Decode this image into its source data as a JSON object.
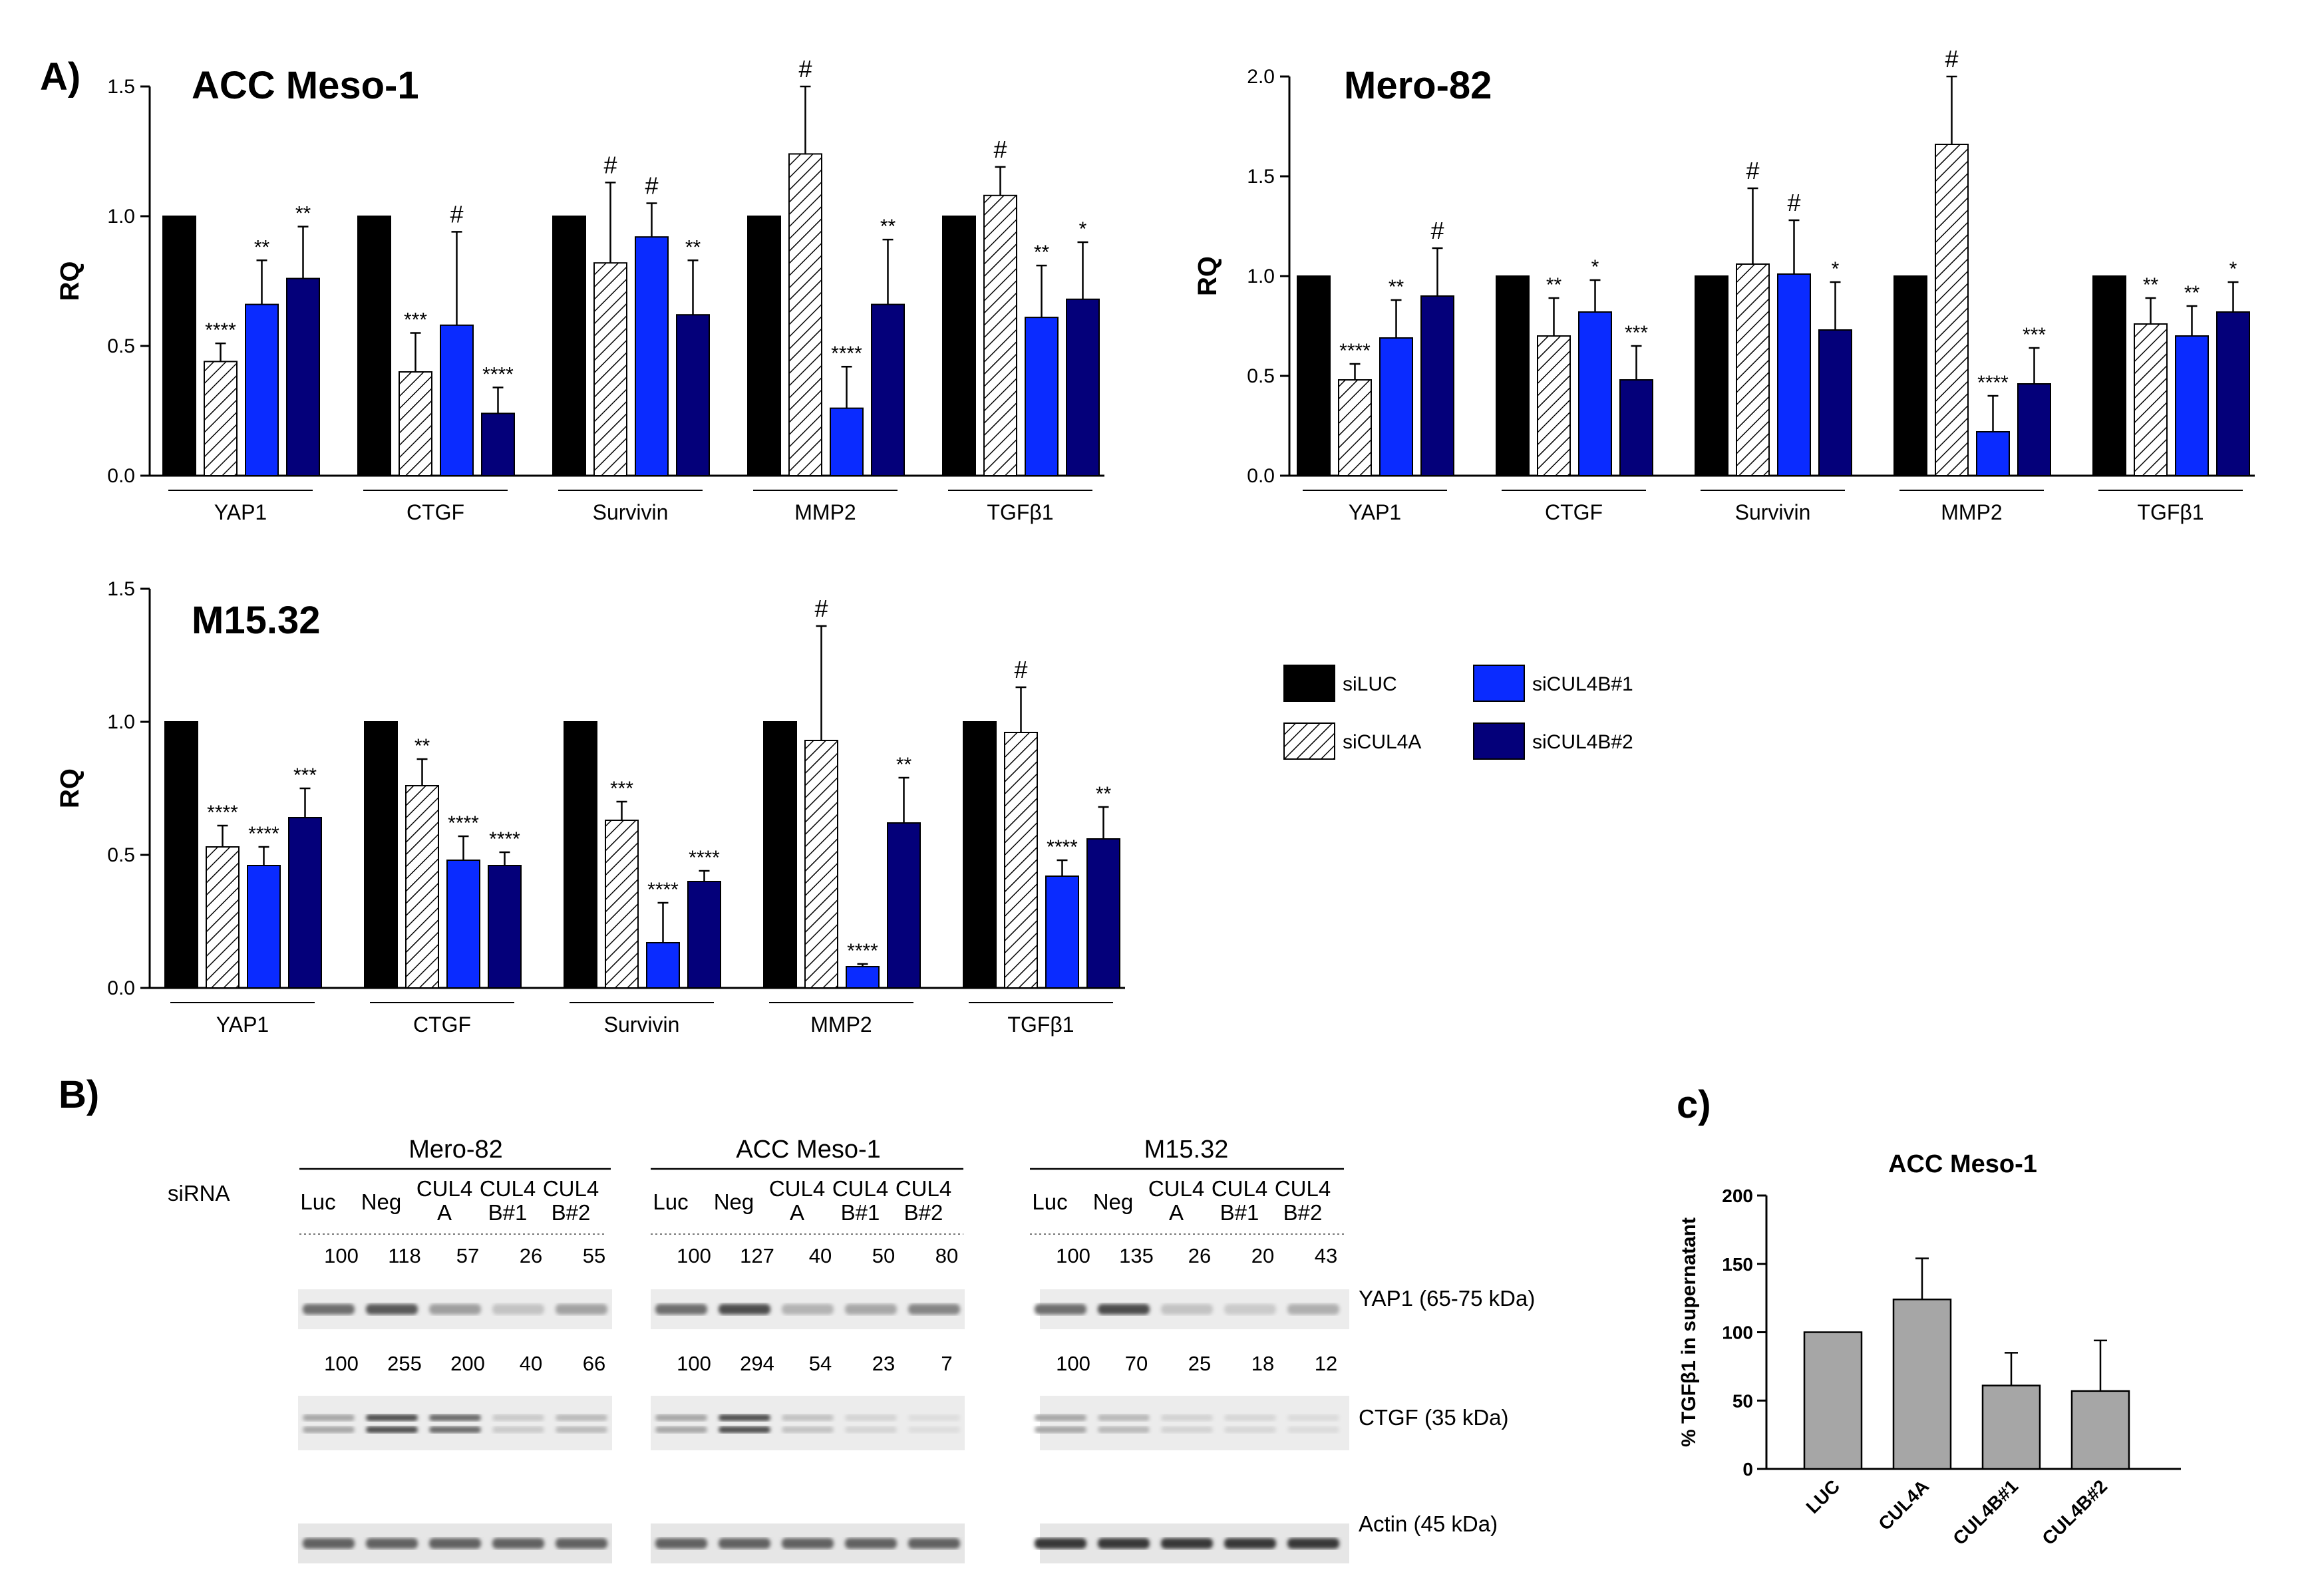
{
  "figure": {
    "panel_labels": {
      "A": "A)",
      "B": "B)",
      "C": "c)"
    }
  },
  "legend": {
    "items": [
      {
        "name": "siLUC",
        "color": "#000000",
        "pattern": "solid"
      },
      {
        "name": "siCUL4A",
        "color": "#ffffff",
        "pattern": "hatch"
      },
      {
        "name": "siCUL4B#1",
        "color": "#0a2bff",
        "pattern": "solid"
      },
      {
        "name": "siCUL4B#2",
        "color": "#04007a",
        "pattern": "solid"
      }
    ]
  },
  "chart_data": [
    {
      "type": "bar",
      "title": "ACC Meso-1",
      "ylabel": "RQ",
      "ylim": [
        0,
        1.5
      ],
      "yticks": [
        "0.0",
        "0.5",
        "1.0",
        "1.5"
      ],
      "categories": [
        "YAP1",
        "CTGF",
        "Survivin",
        "MMP2",
        "TGFβ1"
      ],
      "series": [
        {
          "name": "siLUC",
          "values": [
            1.0,
            1.0,
            1.0,
            1.0,
            1.0
          ],
          "errors": [
            0,
            0,
            0,
            0,
            0
          ],
          "labels": [
            "",
            "",
            "",
            "",
            ""
          ]
        },
        {
          "name": "siCUL4A",
          "values": [
            0.44,
            0.4,
            0.82,
            1.24,
            1.08
          ],
          "errors": [
            0.07,
            0.15,
            0.31,
            0.26,
            0.11
          ],
          "labels": [
            "****",
            "***",
            "#",
            "#",
            "#"
          ]
        },
        {
          "name": "siCUL4B#1",
          "values": [
            0.66,
            0.58,
            0.92,
            0.26,
            0.61
          ],
          "errors": [
            0.17,
            0.36,
            0.13,
            0.16,
            0.2
          ],
          "labels": [
            "**",
            "#",
            "#",
            "****",
            "**"
          ]
        },
        {
          "name": "siCUL4B#2",
          "values": [
            0.76,
            0.24,
            0.62,
            0.66,
            0.68
          ],
          "errors": [
            0.2,
            0.1,
            0.21,
            0.25,
            0.22
          ],
          "labels": [
            "**",
            "****",
            "**",
            "**",
            "*"
          ]
        }
      ]
    },
    {
      "type": "bar",
      "title": "Mero-82",
      "ylabel": "RQ",
      "ylim": [
        0,
        2.0
      ],
      "yticks": [
        "0.0",
        "0.5",
        "1.0",
        "1.5",
        "2.0"
      ],
      "categories": [
        "YAP1",
        "CTGF",
        "Survivin",
        "MMP2",
        "TGFβ1"
      ],
      "series": [
        {
          "name": "siLUC",
          "values": [
            1.0,
            1.0,
            1.0,
            1.0,
            1.0
          ],
          "errors": [
            0,
            0,
            0,
            0,
            0
          ],
          "labels": [
            "",
            "",
            "",
            "",
            ""
          ]
        },
        {
          "name": "siCUL4A",
          "values": [
            0.48,
            0.7,
            1.06,
            1.66,
            0.76
          ],
          "errors": [
            0.08,
            0.19,
            0.38,
            0.34,
            0.13
          ],
          "labels": [
            "****",
            "**",
            "#",
            "#",
            "**"
          ]
        },
        {
          "name": "siCUL4B#1",
          "values": [
            0.69,
            0.82,
            1.01,
            0.22,
            0.7
          ],
          "errors": [
            0.19,
            0.16,
            0.27,
            0.18,
            0.15
          ],
          "labels": [
            "**",
            "*",
            "#",
            "****",
            "**"
          ]
        },
        {
          "name": "siCUL4B#2",
          "values": [
            0.9,
            0.48,
            0.73,
            0.46,
            0.82
          ],
          "errors": [
            0.24,
            0.17,
            0.24,
            0.18,
            0.15
          ],
          "labels": [
            "#",
            "***",
            "*",
            "***",
            "*"
          ]
        }
      ]
    },
    {
      "type": "bar",
      "title": "M15.32",
      "ylabel": "RQ",
      "ylim": [
        0,
        1.5
      ],
      "yticks": [
        "0.0",
        "0.5",
        "1.0",
        "1.5"
      ],
      "categories": [
        "YAP1",
        "CTGF",
        "Survivin",
        "MMP2",
        "TGFβ1"
      ],
      "series": [
        {
          "name": "siLUC",
          "values": [
            1.0,
            1.0,
            1.0,
            1.0,
            1.0
          ],
          "errors": [
            0,
            0,
            0,
            0,
            0
          ],
          "labels": [
            "",
            "",
            "",
            "",
            ""
          ]
        },
        {
          "name": "siCUL4A",
          "values": [
            0.53,
            0.76,
            0.63,
            0.93,
            0.96
          ],
          "errors": [
            0.08,
            0.1,
            0.07,
            0.43,
            0.17
          ],
          "labels": [
            "****",
            "**",
            "***",
            "#",
            "#"
          ]
        },
        {
          "name": "siCUL4B#1",
          "values": [
            0.46,
            0.48,
            0.17,
            0.08,
            0.42
          ],
          "errors": [
            0.07,
            0.09,
            0.15,
            0.01,
            0.06
          ],
          "labels": [
            "****",
            "****",
            "****",
            "****",
            "****"
          ]
        },
        {
          "name": "siCUL4B#2",
          "values": [
            0.64,
            0.46,
            0.4,
            0.62,
            0.56
          ],
          "errors": [
            0.11,
            0.05,
            0.04,
            0.17,
            0.12
          ],
          "labels": [
            "***",
            "****",
            "****",
            "**",
            "**"
          ]
        }
      ]
    },
    {
      "type": "bar",
      "title": "ACC Meso-1",
      "ylabel": "% TGFβ1 in supernatant",
      "ylim": [
        0,
        200
      ],
      "yticks": [
        "0",
        "50",
        "100",
        "150",
        "200"
      ],
      "categories": [
        "LUC",
        "CUL4A",
        "CUL4B#1",
        "CUL4B#2"
      ],
      "values": [
        100,
        124,
        61,
        57
      ],
      "errors": [
        0,
        30,
        24,
        37
      ],
      "color": "#a6a6a6"
    }
  ],
  "western_blot": {
    "siRNA_label": "siRNA",
    "groups": [
      {
        "title": "Mero-82",
        "lanes": [
          [
            "Luc"
          ],
          [
            "Neg"
          ],
          [
            "CUL4",
            "A"
          ],
          [
            "CUL4",
            "B#1"
          ],
          [
            "CUL4",
            "B#2"
          ]
        ],
        "yap1_values": [
          "100",
          "118",
          "57",
          "26",
          "55"
        ],
        "ctgf_values": [
          "100",
          "255",
          "200",
          "40",
          "66"
        ]
      },
      {
        "title": "ACC Meso-1",
        "lanes": [
          [
            "Luc"
          ],
          [
            "Neg"
          ],
          [
            "CUL4",
            "A"
          ],
          [
            "CUL4",
            "B#1"
          ],
          [
            "CUL4",
            "B#2"
          ]
        ],
        "yap1_values": [
          "100",
          "127",
          "40",
          "50",
          "80"
        ],
        "ctgf_values": [
          "100",
          "294",
          "54",
          "23",
          "7"
        ]
      },
      {
        "title": "M15.32",
        "lanes": [
          [
            "Luc"
          ],
          [
            "Neg"
          ],
          [
            "CUL4",
            "A"
          ],
          [
            "CUL4",
            "B#1"
          ],
          [
            "CUL4",
            "B#2"
          ]
        ],
        "yap1_values": [
          "100",
          "135",
          "26",
          "20",
          "43"
        ],
        "ctgf_values": [
          "100",
          "70",
          "25",
          "18",
          "12"
        ]
      }
    ],
    "bands": [
      "YAP1 (65-75 kDa)",
      "CTGF (35 kDa)",
      "Actin (45 kDa)"
    ]
  }
}
